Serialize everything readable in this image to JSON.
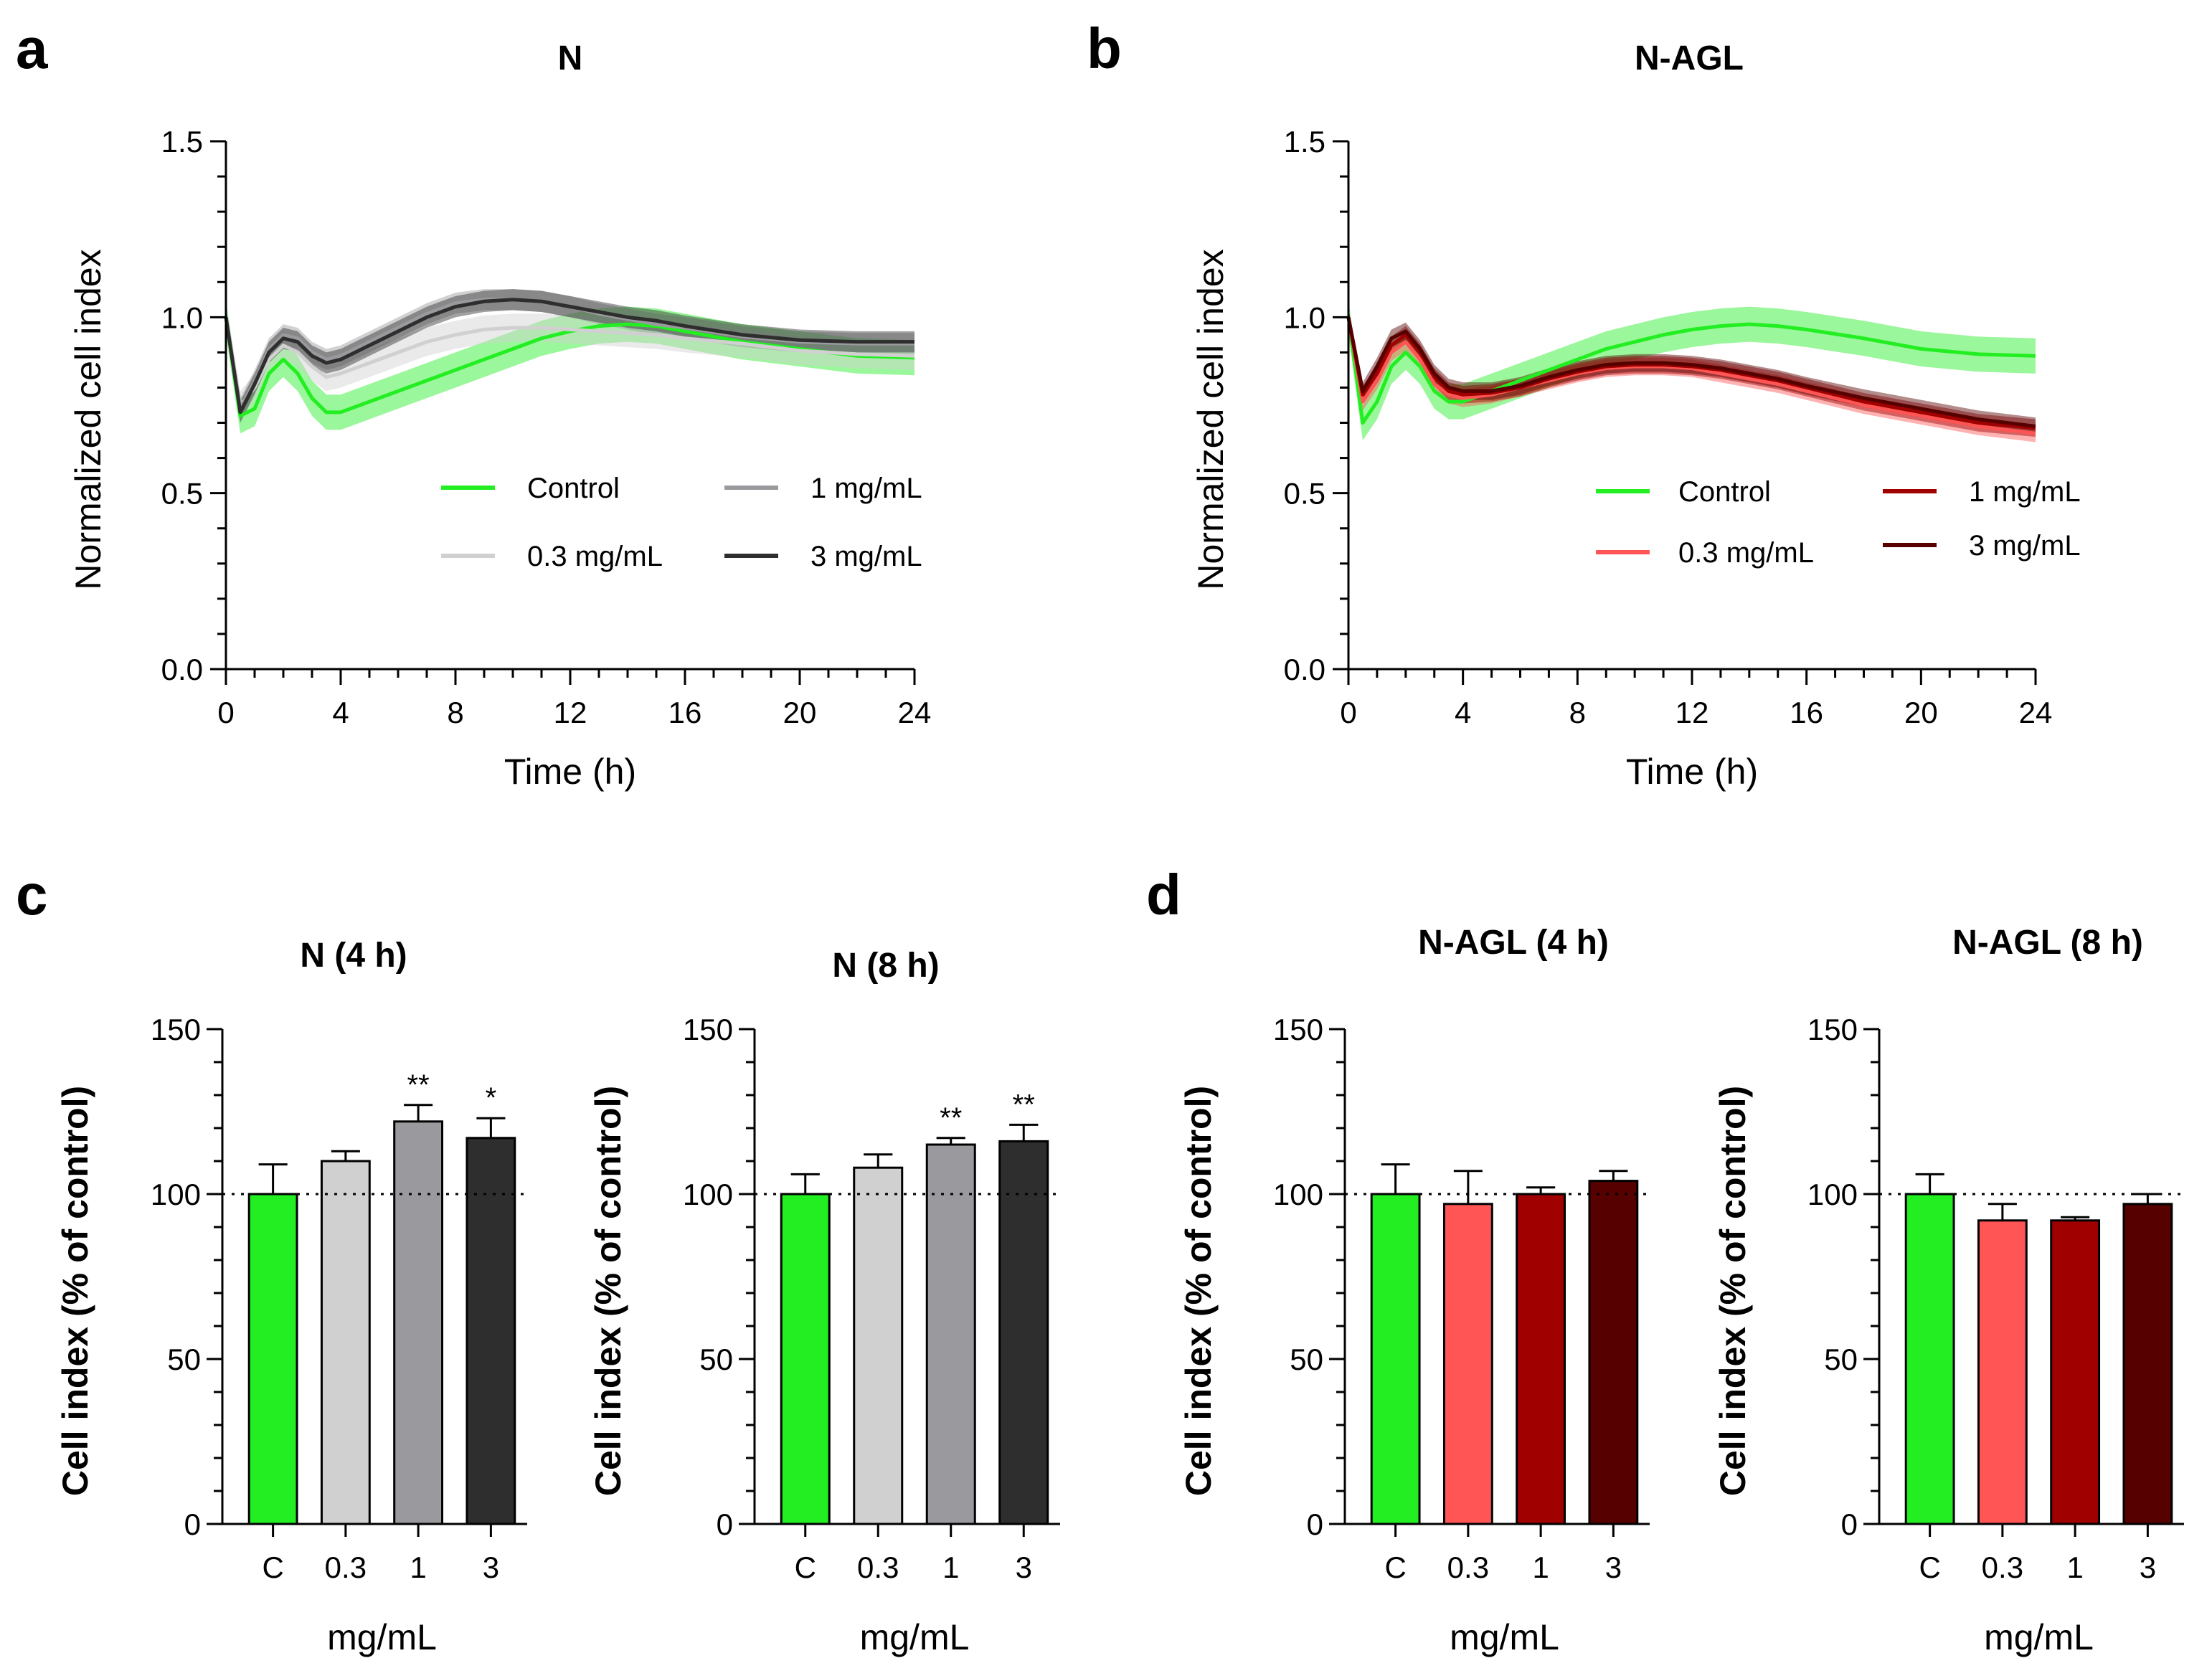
{
  "panel_letters": [
    "a",
    "b",
    "c",
    "d"
  ],
  "colors": {
    "control": "#22ee22",
    "n_03": "#d0d0d0",
    "n_1": "#9a9a9e",
    "n_3": "#2e2e2e",
    "agl_03": "#ff5555",
    "agl_1": "#a00000",
    "agl_3": "#560000"
  },
  "chart_data": [
    {
      "id": "a",
      "type": "line",
      "title": "N",
      "xlabel": "Time (h)",
      "ylabel": "Normalized cell index",
      "xlim": [
        0,
        24
      ],
      "ylim": [
        0,
        1.5
      ],
      "xticks": [
        0,
        4,
        8,
        12,
        16,
        20,
        24
      ],
      "yticks": [
        0.0,
        0.5,
        1.0,
        1.5
      ],
      "ytick_labels": [
        "0.0",
        "0.5",
        "1.0",
        "1.5"
      ],
      "legend": [
        "Control",
        "1 mg/mL",
        "0.3 mg/mL",
        "3 mg/mL"
      ],
      "series": [
        {
          "name": "Control",
          "color": "#22ee22",
          "band": 0.05,
          "x": [
            0,
            0.5,
            1,
            1.5,
            2,
            2.5,
            3,
            3.5,
            4,
            5,
            6,
            7,
            8,
            9,
            10,
            11,
            12,
            13,
            14,
            15,
            16,
            18,
            20,
            22,
            24
          ],
          "y": [
            1.0,
            0.72,
            0.74,
            0.84,
            0.88,
            0.84,
            0.77,
            0.73,
            0.73,
            0.76,
            0.79,
            0.82,
            0.85,
            0.88,
            0.91,
            0.94,
            0.96,
            0.975,
            0.98,
            0.975,
            0.96,
            0.93,
            0.91,
            0.89,
            0.885
          ]
        },
        {
          "name": "0.3 mg/mL",
          "color": "#d0d0d0",
          "band": 0.04,
          "x": [
            0,
            0.5,
            1,
            1.5,
            2,
            2.5,
            3,
            3.5,
            4,
            5,
            6,
            7,
            8,
            9,
            10,
            11,
            12,
            13,
            14,
            15,
            16,
            18,
            20,
            22,
            24
          ],
          "y": [
            1.0,
            0.75,
            0.8,
            0.88,
            0.92,
            0.9,
            0.86,
            0.83,
            0.84,
            0.87,
            0.9,
            0.93,
            0.95,
            0.965,
            0.97,
            0.97,
            0.965,
            0.96,
            0.955,
            0.95,
            0.94,
            0.925,
            0.905,
            0.895,
            0.89
          ]
        },
        {
          "name": "1 mg/mL",
          "color": "#9a9a9e",
          "band": 0.03,
          "x": [
            0,
            0.5,
            1,
            1.5,
            2,
            2.5,
            3,
            3.5,
            4,
            5,
            6,
            7,
            8,
            9,
            10,
            11,
            12,
            13,
            14,
            15,
            16,
            18,
            20,
            22,
            24
          ],
          "y": [
            1.0,
            0.74,
            0.82,
            0.91,
            0.95,
            0.94,
            0.9,
            0.88,
            0.89,
            0.93,
            0.97,
            1.01,
            1.04,
            1.05,
            1.05,
            1.045,
            1.03,
            1.01,
            0.995,
            0.98,
            0.97,
            0.945,
            0.93,
            0.925,
            0.925
          ]
        },
        {
          "name": "3 mg/mL",
          "color": "#2e2e2e",
          "band": 0.03,
          "x": [
            0,
            0.5,
            1,
            1.5,
            2,
            2.5,
            3,
            3.5,
            4,
            5,
            6,
            7,
            8,
            9,
            10,
            11,
            12,
            13,
            14,
            15,
            16,
            18,
            20,
            22,
            24
          ],
          "y": [
            1.0,
            0.73,
            0.81,
            0.9,
            0.94,
            0.93,
            0.89,
            0.87,
            0.88,
            0.92,
            0.96,
            1.0,
            1.03,
            1.045,
            1.05,
            1.045,
            1.03,
            1.015,
            1.0,
            0.99,
            0.975,
            0.95,
            0.935,
            0.93,
            0.93
          ]
        }
      ]
    },
    {
      "id": "b",
      "type": "line",
      "title": "N-AGL",
      "xlabel": "Time (h)",
      "ylabel": "Normalized cell index",
      "xlim": [
        0,
        24
      ],
      "ylim": [
        0,
        1.5
      ],
      "xticks": [
        0,
        4,
        8,
        12,
        16,
        20,
        24
      ],
      "yticks": [
        0.0,
        0.5,
        1.0,
        1.5
      ],
      "ytick_labels": [
        "0.0",
        "0.5",
        "1.0",
        "1.5"
      ],
      "legend": [
        "Control",
        "1 mg/mL",
        "0.3 mg/mL",
        "3 mg/mL"
      ],
      "series": [
        {
          "name": "Control",
          "color": "#22ee22",
          "band": 0.05,
          "x": [
            0,
            0.5,
            1,
            1.5,
            2,
            2.5,
            3,
            3.5,
            4,
            5,
            6,
            7,
            8,
            9,
            10,
            11,
            12,
            13,
            14,
            15,
            16,
            18,
            20,
            22,
            24
          ],
          "y": [
            1.0,
            0.7,
            0.76,
            0.86,
            0.9,
            0.86,
            0.79,
            0.76,
            0.76,
            0.79,
            0.82,
            0.85,
            0.88,
            0.91,
            0.93,
            0.95,
            0.965,
            0.975,
            0.98,
            0.975,
            0.965,
            0.94,
            0.91,
            0.895,
            0.89
          ]
        },
        {
          "name": "0.3 mg/mL",
          "color": "#ff5555",
          "band": 0.025,
          "x": [
            0,
            0.5,
            1,
            1.5,
            2,
            2.5,
            3,
            3.5,
            4,
            5,
            6,
            7,
            8,
            9,
            10,
            11,
            12,
            13,
            14,
            15,
            16,
            18,
            20,
            22,
            24
          ],
          "y": [
            1.0,
            0.76,
            0.82,
            0.9,
            0.93,
            0.88,
            0.81,
            0.78,
            0.77,
            0.78,
            0.8,
            0.82,
            0.84,
            0.855,
            0.86,
            0.86,
            0.855,
            0.84,
            0.825,
            0.81,
            0.79,
            0.75,
            0.72,
            0.69,
            0.67
          ]
        },
        {
          "name": "1 mg/mL",
          "color": "#a00000",
          "band": 0.025,
          "x": [
            0,
            0.5,
            1,
            1.5,
            2,
            2.5,
            3,
            3.5,
            4,
            5,
            6,
            7,
            8,
            9,
            10,
            11,
            12,
            13,
            14,
            15,
            16,
            18,
            20,
            22,
            24
          ],
          "y": [
            1.0,
            0.78,
            0.84,
            0.92,
            0.95,
            0.9,
            0.83,
            0.79,
            0.78,
            0.785,
            0.8,
            0.825,
            0.845,
            0.86,
            0.865,
            0.865,
            0.86,
            0.85,
            0.835,
            0.82,
            0.8,
            0.76,
            0.73,
            0.7,
            0.685
          ]
        },
        {
          "name": "3 mg/mL",
          "color": "#560000",
          "band": 0.025,
          "x": [
            0,
            0.5,
            1,
            1.5,
            2,
            2.5,
            3,
            3.5,
            4,
            5,
            6,
            7,
            8,
            9,
            10,
            11,
            12,
            13,
            14,
            15,
            16,
            18,
            20,
            22,
            24
          ],
          "y": [
            1.0,
            0.79,
            0.86,
            0.94,
            0.96,
            0.91,
            0.84,
            0.8,
            0.79,
            0.79,
            0.805,
            0.83,
            0.85,
            0.865,
            0.87,
            0.87,
            0.865,
            0.855,
            0.84,
            0.825,
            0.805,
            0.77,
            0.74,
            0.71,
            0.69
          ]
        }
      ]
    },
    {
      "id": "c1",
      "type": "bar",
      "title": "N (4 h)",
      "xlabel": "mg/mL",
      "ylabel": "Cell index (% of control)",
      "ylim": [
        0,
        150
      ],
      "yticks": [
        0,
        50,
        100,
        150
      ],
      "reference_line": 100,
      "categories": [
        "C",
        "0.3",
        "1",
        "3"
      ],
      "values": [
        100,
        110,
        122,
        117
      ],
      "errors": [
        9,
        3,
        5,
        6
      ],
      "significance": [
        "",
        "",
        "**",
        "*"
      ],
      "colors": [
        "#22ee22",
        "#d0d0d0",
        "#9a9a9e",
        "#2e2e2e"
      ]
    },
    {
      "id": "c2",
      "type": "bar",
      "title": "N (8 h)",
      "xlabel": "mg/mL",
      "ylabel": "Cell index (% of control)",
      "ylim": [
        0,
        150
      ],
      "yticks": [
        0,
        50,
        100,
        150
      ],
      "reference_line": 100,
      "categories": [
        "C",
        "0.3",
        "1",
        "3"
      ],
      "values": [
        100,
        108,
        115,
        116
      ],
      "errors": [
        6,
        4,
        2,
        5
      ],
      "significance": [
        "",
        "",
        "**",
        "**"
      ],
      "colors": [
        "#22ee22",
        "#d0d0d0",
        "#9a9a9e",
        "#2e2e2e"
      ]
    },
    {
      "id": "d1",
      "type": "bar",
      "title": "N-AGL (4 h)",
      "xlabel": "mg/mL",
      "ylabel": "Cell index (% of control)",
      "ylim": [
        0,
        150
      ],
      "yticks": [
        0,
        50,
        100,
        150
      ],
      "reference_line": 100,
      "categories": [
        "C",
        "0.3",
        "1",
        "3"
      ],
      "values": [
        100,
        97,
        100,
        104
      ],
      "errors": [
        9,
        10,
        2,
        3
      ],
      "significance": [
        "",
        "",
        "",
        ""
      ],
      "colors": [
        "#22ee22",
        "#ff5555",
        "#a00000",
        "#560000"
      ]
    },
    {
      "id": "d2",
      "type": "bar",
      "title": "N-AGL (8 h)",
      "xlabel": "mg/mL",
      "ylabel": "Cell index (% of control)",
      "ylim": [
        0,
        150
      ],
      "yticks": [
        0,
        50,
        100,
        150
      ],
      "reference_line": 100,
      "categories": [
        "C",
        "0.3",
        "1",
        "3"
      ],
      "values": [
        100,
        92,
        92,
        97
      ],
      "errors": [
        6,
        5,
        1,
        3
      ],
      "significance": [
        "",
        "",
        "",
        ""
      ],
      "colors": [
        "#22ee22",
        "#ff5555",
        "#a00000",
        "#560000"
      ]
    }
  ]
}
